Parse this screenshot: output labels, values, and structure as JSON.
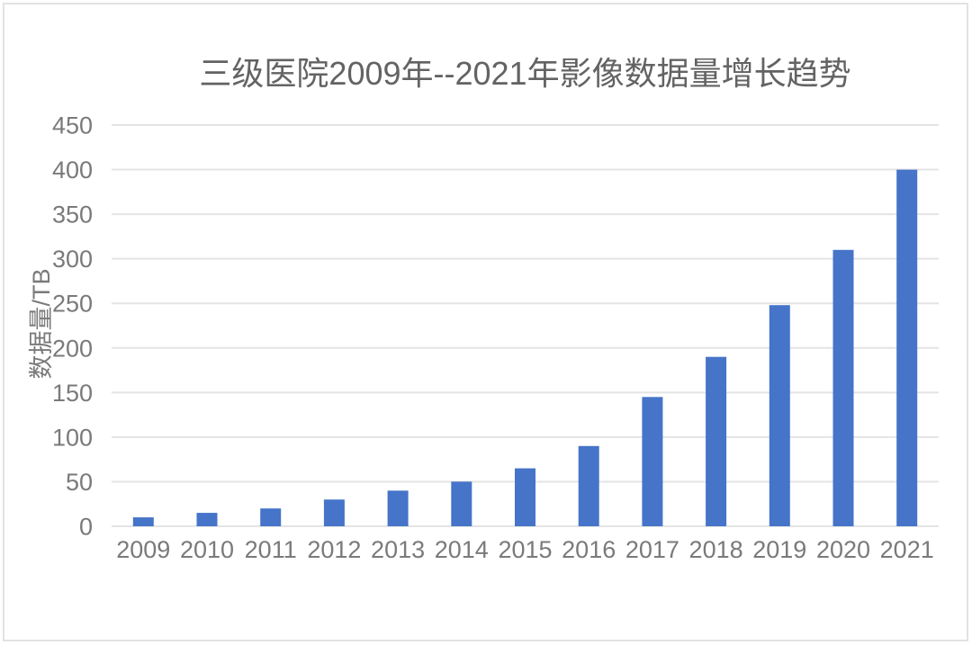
{
  "chart_data": {
    "type": "bar",
    "title": "三级医院2009年--2021年影像数据量增长趋势",
    "ylabel": "数据量/TB",
    "xlabel": "",
    "categories": [
      "2009",
      "2010",
      "2011",
      "2012",
      "2013",
      "2014",
      "2015",
      "2016",
      "2017",
      "2018",
      "2019",
      "2020",
      "2021"
    ],
    "values": [
      10,
      15,
      20,
      30,
      40,
      50,
      65,
      90,
      145,
      190,
      248,
      310,
      400
    ],
    "yticks": [
      0,
      50,
      100,
      150,
      200,
      250,
      300,
      350,
      400,
      450
    ],
    "ylim": [
      0,
      450
    ],
    "grid": true,
    "legend": "none",
    "colors": {
      "bar": "#4574C9",
      "gridline": "#e4e4e4",
      "tick_text": "#7a7a7a",
      "title_text": "#636363",
      "frame_border": "#e2e2e2",
      "background": "#ffffff"
    }
  }
}
